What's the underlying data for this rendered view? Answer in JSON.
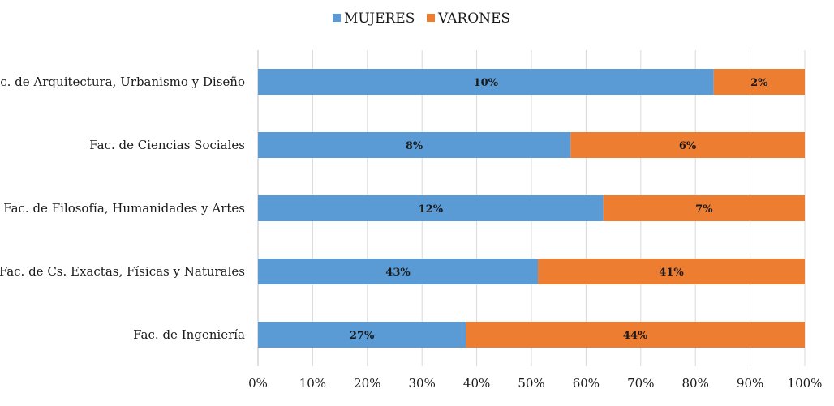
{
  "chart_data": {
    "type": "bar",
    "orientation": "horizontal",
    "stacked": "percent",
    "title": "",
    "xlabel": "",
    "ylabel": "",
    "xlim": [
      0,
      100
    ],
    "x_ticks": [
      "0%",
      "10%",
      "20%",
      "30%",
      "40%",
      "50%",
      "60%",
      "70%",
      "80%",
      "90%",
      "100%"
    ],
    "grid": "vertical",
    "legend_position": "top",
    "categories": [
      "Fac. de Arquitectura, Urbanismo y Diseño",
      "Fac. de Ciencias Sociales",
      "Fac. de Filosofía, Humanidades y Artes",
      "Fac. de Cs. Exactas, Físicas y Naturales",
      "Fac. de Ingeniería"
    ],
    "series": [
      {
        "name": "MUJERES",
        "color": "#5b9bd5",
        "values": [
          10,
          8,
          12,
          43,
          27
        ],
        "labels": [
          "10%",
          "8%",
          "12%",
          "43%",
          "27%"
        ]
      },
      {
        "name": "VARONES",
        "color": "#ed7d31",
        "values": [
          2,
          6,
          7,
          41,
          44
        ],
        "labels": [
          "2%",
          "6%",
          "7%",
          "41%",
          "44%"
        ]
      }
    ]
  }
}
